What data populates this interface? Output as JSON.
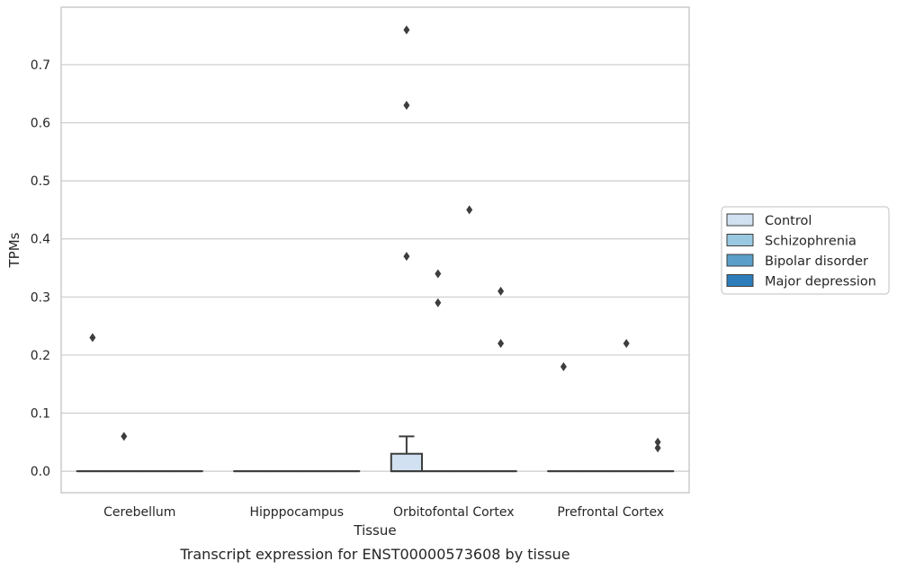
{
  "chart_data": {
    "type": "box",
    "title": "",
    "caption": "Transcript expression for ENST00000573608 by tissue",
    "xlabel": "Tissue",
    "ylabel": "TPMs",
    "ylim": [
      -0.037,
      0.799
    ],
    "yticks": [
      "0.0",
      "0.1",
      "0.2",
      "0.3",
      "0.4",
      "0.5",
      "0.6",
      "0.7"
    ],
    "grid": true,
    "legend_position": "right",
    "categories": [
      "Cerebellum",
      "Hipppocampus",
      "Orbitofontal Cortex",
      "Prefrontal Cortex"
    ],
    "series": [
      {
        "name": "Control",
        "color": "#d1e1f1",
        "boxes": [
          {
            "q1": 0,
            "median": 0,
            "q3": 0,
            "whisker_low": 0,
            "whisker_high": 0,
            "outliers": [
              0.23
            ]
          },
          {
            "q1": 0,
            "median": 0,
            "q3": 0,
            "whisker_low": 0,
            "whisker_high": 0,
            "outliers": []
          },
          {
            "q1": 0,
            "median": 0,
            "q3": 0.03,
            "whisker_low": 0,
            "whisker_high": 0.06,
            "outliers": [
              0.76,
              0.63,
              0.37
            ]
          },
          {
            "q1": 0,
            "median": 0,
            "q3": 0,
            "whisker_low": 0,
            "whisker_high": 0,
            "outliers": [
              0.18
            ]
          }
        ]
      },
      {
        "name": "Schizophrenia",
        "color": "#9ac8e0",
        "boxes": [
          {
            "q1": 0,
            "median": 0,
            "q3": 0,
            "whisker_low": 0,
            "whisker_high": 0,
            "outliers": [
              0.06
            ]
          },
          {
            "q1": 0,
            "median": 0,
            "q3": 0,
            "whisker_low": 0,
            "whisker_high": 0,
            "outliers": []
          },
          {
            "q1": 0,
            "median": 0,
            "q3": 0,
            "whisker_low": 0,
            "whisker_high": 0,
            "outliers": [
              0.34,
              0.29
            ]
          },
          {
            "q1": 0,
            "median": 0,
            "q3": 0,
            "whisker_low": 0,
            "whisker_high": 0,
            "outliers": []
          }
        ]
      },
      {
        "name": "Bipolar disorder",
        "color": "#5b9ec9",
        "boxes": [
          {
            "q1": 0,
            "median": 0,
            "q3": 0,
            "whisker_low": 0,
            "whisker_high": 0,
            "outliers": []
          },
          {
            "q1": 0,
            "median": 0,
            "q3": 0,
            "whisker_low": 0,
            "whisker_high": 0,
            "outliers": []
          },
          {
            "q1": 0,
            "median": 0,
            "q3": 0,
            "whisker_low": 0,
            "whisker_high": 0,
            "outliers": [
              0.45
            ]
          },
          {
            "q1": 0,
            "median": 0,
            "q3": 0,
            "whisker_low": 0,
            "whisker_high": 0,
            "outliers": [
              0.22
            ]
          }
        ]
      },
      {
        "name": "Major depression",
        "color": "#2d7dbb",
        "boxes": [
          {
            "q1": 0,
            "median": 0,
            "q3": 0,
            "whisker_low": 0,
            "whisker_high": 0,
            "outliers": []
          },
          {
            "q1": 0,
            "median": 0,
            "q3": 0,
            "whisker_low": 0,
            "whisker_high": 0,
            "outliers": []
          },
          {
            "q1": 0,
            "median": 0,
            "q3": 0,
            "whisker_low": 0,
            "whisker_high": 0,
            "outliers": [
              0.31,
              0.22
            ]
          },
          {
            "q1": 0,
            "median": 0,
            "q3": 0,
            "whisker_low": 0,
            "whisker_high": 0,
            "outliers": [
              0.05,
              0.04
            ]
          }
        ]
      }
    ]
  }
}
